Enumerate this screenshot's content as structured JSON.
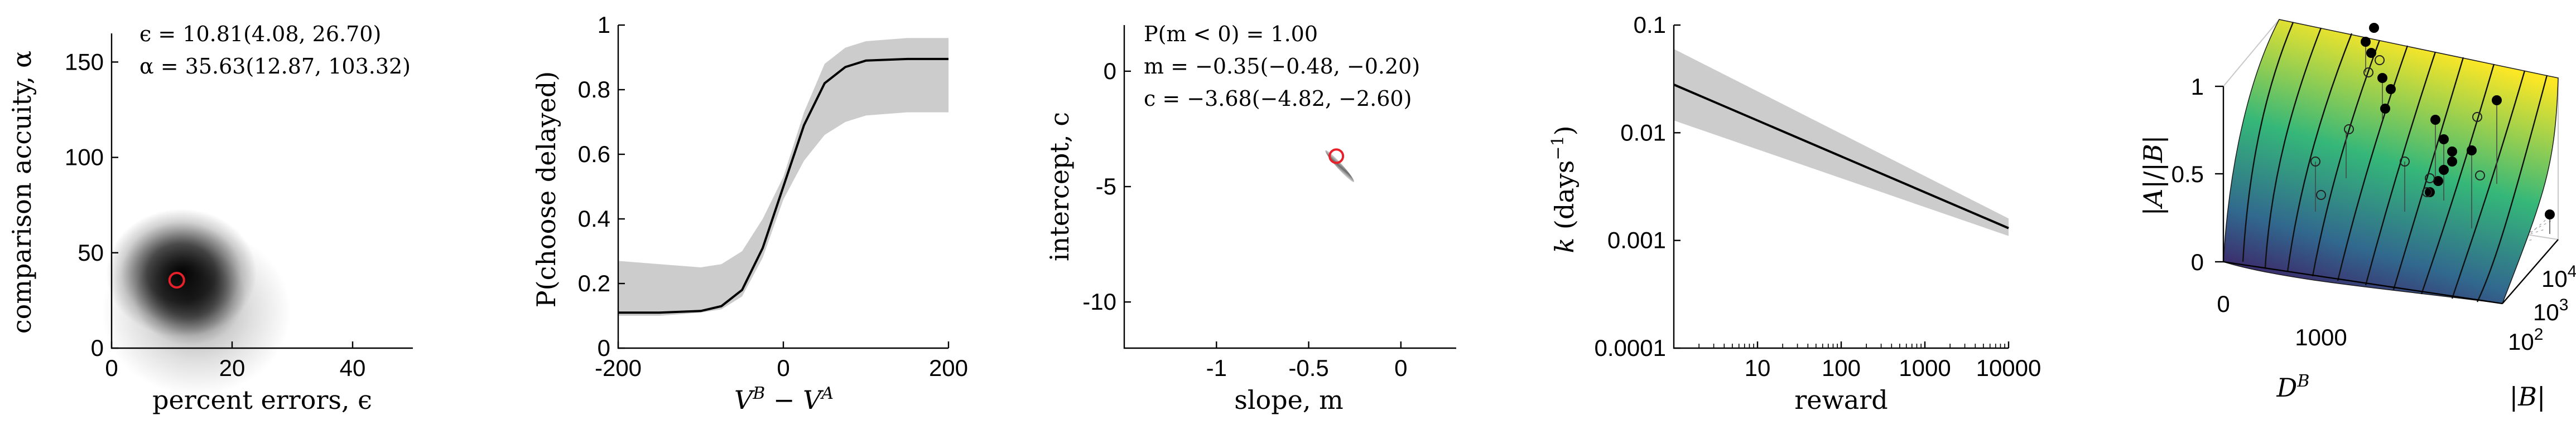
{
  "chart_data": [
    {
      "type": "heatmap",
      "xlabel": "percent errors, ϵ",
      "ylabel": "comparison accuity, α",
      "xlim": [
        0,
        50
      ],
      "ylim": [
        0,
        165
      ],
      "xticks": [
        "0",
        "20",
        "40"
      ],
      "yticks": [
        "0",
        "50",
        "100",
        "150"
      ],
      "annotations": [
        "ϵ = 10.81(4.08, 26.70)",
        "α = 35.63(12.87, 103.32)"
      ],
      "posterior_mode": {
        "x": 10.81,
        "y": 35.63
      },
      "colors": {
        "marker": "#e8202a",
        "density": "#000000"
      }
    },
    {
      "type": "line",
      "xlabel": "V^B − V^A",
      "ylabel": "P(choose delayed)",
      "xlim": [
        -200,
        200
      ],
      "ylim": [
        0,
        1
      ],
      "xticks": [
        "-200",
        "0",
        "200"
      ],
      "yticks": [
        "0",
        "0.2",
        "0.4",
        "0.6",
        "0.8",
        "1"
      ],
      "series": [
        {
          "x": [
            -200,
            -150,
            -100,
            -75,
            -50,
            -25,
            0,
            25,
            50,
            75,
            100,
            150,
            200
          ],
          "values": [
            0.11,
            0.11,
            0.115,
            0.13,
            0.18,
            0.31,
            0.5,
            0.69,
            0.82,
            0.87,
            0.89,
            0.895,
            0.895
          ],
          "lower": [
            0.1,
            0.1,
            0.11,
            0.12,
            0.16,
            0.28,
            0.46,
            0.58,
            0.66,
            0.7,
            0.72,
            0.73,
            0.73
          ],
          "upper": [
            0.27,
            0.26,
            0.25,
            0.26,
            0.3,
            0.4,
            0.53,
            0.73,
            0.88,
            0.93,
            0.95,
            0.96,
            0.96
          ]
        }
      ],
      "colors": {
        "line": "#000000",
        "band": "#cccccc"
      }
    },
    {
      "type": "scatter",
      "xlabel": "slope, m",
      "ylabel": "intercept, c",
      "xlim": [
        -1.5,
        0.3
      ],
      "ylim": [
        -12,
        2
      ],
      "xticks": [
        "-1",
        "-0.5",
        "0"
      ],
      "yticks": [
        "0",
        "-5",
        "-10"
      ],
      "annotations": [
        "P(m < 0) = 1.00",
        "m = −0.35(−0.48, −0.20)",
        "c = −3.68(−4.82, −2.60)"
      ],
      "posterior_mode": {
        "x": -0.35,
        "y": -3.68
      },
      "colors": {
        "marker": "#e8202a",
        "cloud": "#888888"
      }
    },
    {
      "type": "line",
      "xlabel": "reward",
      "ylabel": "k (days⁻¹)",
      "xscale": "log",
      "yscale": "log",
      "xlim": [
        1,
        10000
      ],
      "ylim": [
        0.0001,
        0.1
      ],
      "xticks": [
        "10",
        "100",
        "1000",
        "10000"
      ],
      "yticks": [
        "0.1",
        "0.01",
        "0.001",
        "0.0001"
      ],
      "series": [
        {
          "x": [
            1,
            10000
          ],
          "values": [
            0.028,
            0.0013
          ],
          "lower": [
            0.013,
            0.0011
          ],
          "upper": [
            0.06,
            0.0016
          ]
        }
      ],
      "colors": {
        "line": "#000000",
        "band": "#cccccc"
      }
    },
    {
      "type": "surface",
      "xlabel": "D^B",
      "ylabel": "|B|",
      "zlabel": "|A|/|B|",
      "zticks": [
        "0",
        "0.5",
        "1"
      ],
      "xticks": [
        "0",
        "1000"
      ],
      "yticks": [
        "10^2",
        "10^3",
        "10^4"
      ],
      "colormap": [
        "#440154",
        "#31688e",
        "#35b779",
        "#fde725"
      ],
      "colors": {
        "points": "#000000",
        "contours": "#000000"
      }
    }
  ]
}
